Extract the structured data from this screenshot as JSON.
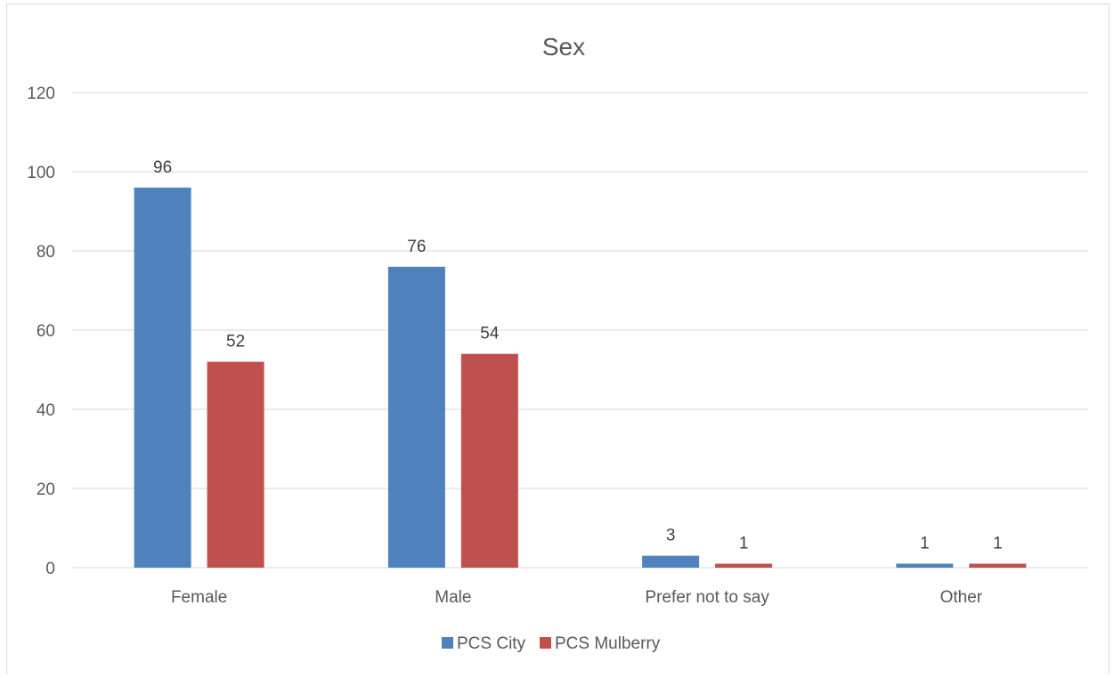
{
  "chart_data": {
    "type": "bar",
    "title": "Sex",
    "xlabel": "",
    "ylabel": "",
    "categories": [
      "Female",
      "Male",
      "Prefer not to say",
      "Other"
    ],
    "series": [
      {
        "name": "PCS City",
        "color": "#4f81bd",
        "values": [
          96,
          76,
          3,
          1
        ]
      },
      {
        "name": "PCS Mulberry",
        "color": "#c0504d",
        "values": [
          52,
          54,
          1,
          1
        ]
      }
    ],
    "ylim": [
      0,
      120
    ],
    "yticks": [
      0,
      20,
      40,
      60,
      80,
      100,
      120
    ],
    "grid": true,
    "data_labels": true,
    "legend_position": "bottom"
  }
}
